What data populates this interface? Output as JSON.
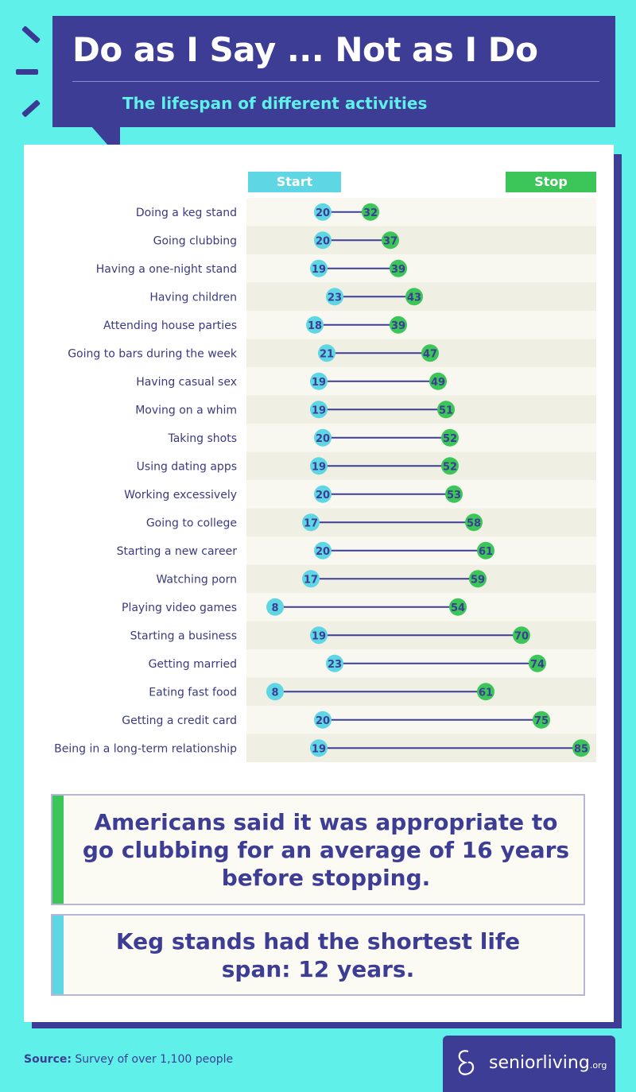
{
  "header": {
    "title": "Do as I Say ... Not as I Do",
    "subtitle": "The lifespan of different activities"
  },
  "legend": {
    "start_label": "Start",
    "stop_label": "Stop"
  },
  "colors": {
    "start": "#5fd6e4",
    "stop": "#3cc559",
    "line": "#3d3d95",
    "label_text": "#3a3a80",
    "row_stripe": "#efefe3",
    "header_bg": "#3d3d95",
    "background": "#5ef0e9"
  },
  "chart_data": {
    "type": "dumbbell",
    "categories": [
      "Doing a keg stand",
      "Going clubbing",
      "Having a one-night stand",
      "Having children",
      "Attending house parties",
      "Going to bars during the week",
      "Having casual sex",
      "Moving on a whim",
      "Taking shots",
      "Using dating apps",
      "Working excessively",
      "Going to college",
      "Starting a new career",
      "Watching porn",
      "Playing video games",
      "Starting a business",
      "Getting married",
      "Eating fast food",
      "Getting a credit card",
      "Being in a long-term relationship"
    ],
    "series": [
      {
        "name": "Start",
        "values": [
          20,
          20,
          19,
          23,
          18,
          21,
          19,
          19,
          20,
          19,
          20,
          17,
          20,
          17,
          8,
          19,
          23,
          8,
          20,
          19
        ]
      },
      {
        "name": "Stop",
        "values": [
          32,
          37,
          39,
          43,
          39,
          47,
          49,
          51,
          52,
          52,
          53,
          58,
          61,
          59,
          54,
          70,
          74,
          61,
          75,
          85
        ]
      }
    ]
  },
  "callouts": [
    {
      "text": "Americans said it was appropriate to go clubbing for an average of 16 years before stopping.",
      "accent": "#3cc559"
    },
    {
      "text": "Keg stands had the shortest life span: 12 years.",
      "accent": "#5fd6e4"
    }
  ],
  "footer": {
    "source_label": "Source:",
    "source_text": " Survey of over 1,100 people",
    "logo_text": "seniorliving",
    "logo_suffix": ".org"
  }
}
